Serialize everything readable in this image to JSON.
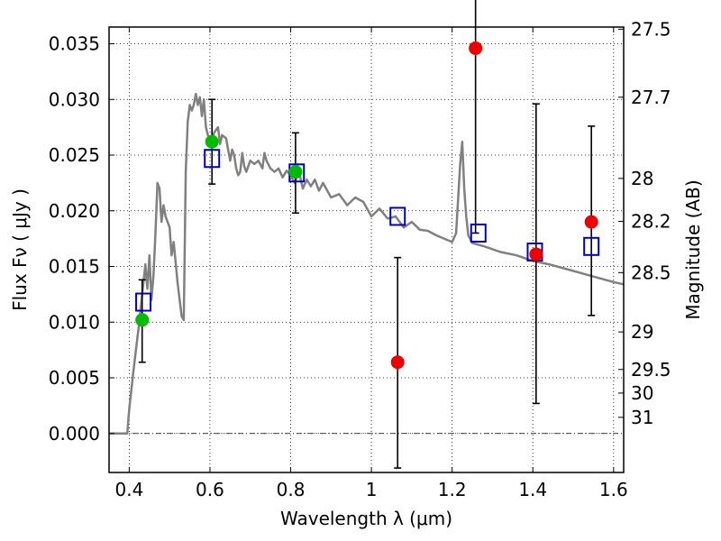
{
  "chart_data": {
    "type": "scatter",
    "xlabel": "Wavelength  λ (μm)",
    "ylabel": "Flux  Fν  ( μJy )",
    "y2label": "Magnitude (AB)",
    "xlim": [
      0.35,
      1.625
    ],
    "ylim": [
      -0.0035,
      0.0365
    ],
    "grid": true,
    "x_ticks": [
      0.4,
      0.6,
      0.8,
      1.0,
      1.2,
      1.4,
      1.6
    ],
    "x_tick_labels": [
      "0.4",
      "0.6",
      "0.8",
      "1",
      "1.2",
      "1.4",
      "1.6"
    ],
    "y_ticks": [
      0.0,
      0.005,
      0.01,
      0.015,
      0.02,
      0.025,
      0.03,
      0.035
    ],
    "y_tick_labels": [
      "0.000",
      "0.005",
      "0.010",
      "0.015",
      "0.020",
      "0.025",
      "0.030",
      "0.035"
    ],
    "mag_ticks": [
      {
        "label": "27.5",
        "flux": 0.03631
      },
      {
        "label": "27.7",
        "flux": 0.0302
      },
      {
        "label": "28",
        "flux": 0.02291
      },
      {
        "label": "28.2",
        "flux": 0.01905
      },
      {
        "label": "28.5",
        "flux": 0.01445
      },
      {
        "label": "29",
        "flux": 0.00912
      },
      {
        "label": "29.5",
        "flux": 0.00575
      },
      {
        "label": "30",
        "flux": 0.00363
      },
      {
        "label": "31",
        "flux": 0.00145
      }
    ],
    "series": [
      {
        "kind": "line",
        "color": "#808080",
        "x": [
          0.35,
          0.385,
          0.395,
          0.4,
          0.41,
          0.415,
          0.42,
          0.425,
          0.43,
          0.435,
          0.44,
          0.445,
          0.45,
          0.455,
          0.46,
          0.465,
          0.47,
          0.475,
          0.48,
          0.485,
          0.49,
          0.5,
          0.505,
          0.51,
          0.52,
          0.53,
          0.535,
          0.54,
          0.545,
          0.55,
          0.555,
          0.56,
          0.565,
          0.57,
          0.575,
          0.58,
          0.585,
          0.59,
          0.595,
          0.6,
          0.605,
          0.61,
          0.62,
          0.625,
          0.63,
          0.64,
          0.645,
          0.65,
          0.655,
          0.66,
          0.665,
          0.67,
          0.675,
          0.68,
          0.685,
          0.69,
          0.7,
          0.71,
          0.72,
          0.73,
          0.735,
          0.74,
          0.75,
          0.76,
          0.77,
          0.78,
          0.79,
          0.8,
          0.81,
          0.82,
          0.83,
          0.84,
          0.85,
          0.86,
          0.87,
          0.88,
          0.9,
          0.92,
          0.94,
          0.96,
          0.98,
          1.0,
          1.02,
          1.04,
          1.06,
          1.08,
          1.1,
          1.12,
          1.14,
          1.16,
          1.18,
          1.2,
          1.21,
          1.22,
          1.225,
          1.23,
          1.235,
          1.24,
          1.25,
          1.28,
          1.32,
          1.36,
          1.4,
          1.44,
          1.48,
          1.52,
          1.56,
          1.6,
          1.625
        ],
        "y": [
          0.0,
          0.0,
          0.0,
          0.0022,
          0.0055,
          0.007,
          0.0085,
          0.01,
          0.0118,
          0.0135,
          0.0152,
          0.013,
          0.016,
          0.012,
          0.0142,
          0.018,
          0.0225,
          0.022,
          0.019,
          0.0205,
          0.0195,
          0.0185,
          0.016,
          0.0172,
          0.0135,
          0.0105,
          0.0102,
          0.0235,
          0.028,
          0.0295,
          0.029,
          0.0295,
          0.0305,
          0.0295,
          0.0302,
          0.0285,
          0.03,
          0.0275,
          0.0268,
          0.0265,
          0.0258,
          0.027,
          0.0275,
          0.026,
          0.0268,
          0.0265,
          0.0255,
          0.0245,
          0.0255,
          0.025,
          0.0238,
          0.0232,
          0.0235,
          0.0252,
          0.024,
          0.0235,
          0.0245,
          0.0242,
          0.0245,
          0.0238,
          0.0252,
          0.0245,
          0.0238,
          0.0235,
          0.0238,
          0.023,
          0.0236,
          0.0232,
          0.0225,
          0.0236,
          0.022,
          0.0228,
          0.0222,
          0.0228,
          0.0218,
          0.0225,
          0.0212,
          0.0215,
          0.0205,
          0.0212,
          0.0208,
          0.0195,
          0.0202,
          0.0193,
          0.0195,
          0.0185,
          0.019,
          0.0183,
          0.0182,
          0.0178,
          0.0175,
          0.0172,
          0.018,
          0.0242,
          0.0262,
          0.022,
          0.0195,
          0.0178,
          0.0171,
          0.0168,
          0.0163,
          0.016,
          0.0155,
          0.0152,
          0.0148,
          0.0144,
          0.014,
          0.0136,
          0.0134
        ]
      },
      {
        "kind": "points",
        "shape": "square",
        "color": "#0000cc",
        "x": [
          0.435,
          0.605,
          0.815,
          1.065,
          1.265,
          1.405,
          1.545
        ],
        "y": [
          0.0118,
          0.0247,
          0.0234,
          0.0195,
          0.018,
          0.0163,
          0.0168
        ]
      },
      {
        "kind": "points",
        "shape": "circle",
        "color": "#00bb00",
        "x": [
          0.432,
          0.605,
          0.812
        ],
        "y": [
          0.0102,
          0.0262,
          0.0235
        ],
        "yerr_low": [
          0.0038,
          0.0038,
          0.0037
        ],
        "yerr_high": [
          0.0036,
          0.0038,
          0.0035
        ]
      },
      {
        "kind": "points",
        "shape": "circle",
        "color": "#ee0000",
        "x": [
          1.065,
          1.258,
          1.408,
          1.545
        ],
        "y": [
          0.0064,
          0.0346,
          0.0161,
          0.019
        ],
        "yerr_low": [
          0.0095,
          0.0166,
          0.0134,
          0.0084
        ],
        "yerr_high": [
          0.0094,
          0.005,
          0.0135,
          0.0086
        ]
      }
    ]
  }
}
